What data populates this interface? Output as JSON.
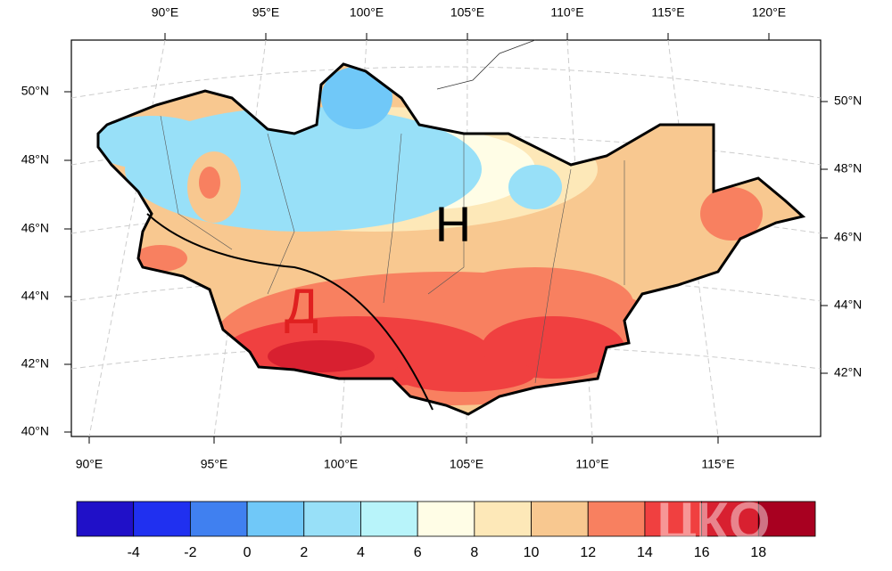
{
  "map": {
    "lon_labels_top": [
      "90°E",
      "95°E",
      "100°E",
      "105°E",
      "110°E",
      "115°E",
      "120°E"
    ],
    "lon_labels_bottom": [
      "90°E",
      "95°E",
      "100°E",
      "105°E",
      "110°E",
      "115°E"
    ],
    "lat_labels_left": [
      "50°N",
      "48°N",
      "46°N",
      "44°N",
      "42°N",
      "40°N"
    ],
    "lat_labels_right": [
      "50°N",
      "48°N",
      "46°N",
      "44°N",
      "42°N"
    ],
    "region_labels": [
      "Н",
      "Д"
    ],
    "watermark": "ЦКО"
  },
  "colorbar": {
    "levels": [
      -4,
      -2,
      0,
      2,
      4,
      6,
      8,
      10,
      12,
      14,
      16,
      18
    ],
    "colors": [
      "#2010c8",
      "#2030f0",
      "#4080f0",
      "#70c8f8",
      "#98e0f8",
      "#b8f4fa",
      "#fffde6",
      "#fde8b8",
      "#f8c890",
      "#f88060",
      "#f04040",
      "#d82030",
      "#a80020"
    ]
  }
}
